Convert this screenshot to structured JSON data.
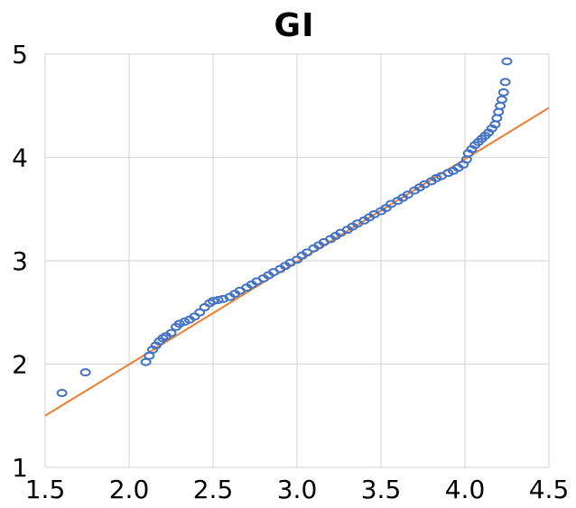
{
  "chart_data": {
    "type": "scatter",
    "title": "GI",
    "xlabel": "",
    "ylabel": "",
    "xlim": [
      1.5,
      4.5
    ],
    "ylim": [
      1,
      5
    ],
    "x_ticks": [
      "1.5",
      "2.0",
      "2.5",
      "3.0",
      "3.5",
      "4.0",
      "4.5"
    ],
    "y_ticks": [
      "1",
      "2",
      "3",
      "4",
      "5"
    ],
    "grid": true,
    "legend": "none",
    "colors": {
      "points": "#4472C4",
      "reference_line": "#ED7D31",
      "grid": "#D9D9D9"
    },
    "reference_line": {
      "x": [
        1.5,
        4.5
      ],
      "y": [
        1.5,
        4.48
      ]
    },
    "series": [
      {
        "points": [
          [
            1.6,
            1.72
          ],
          [
            1.74,
            1.92
          ],
          [
            2.1,
            2.02
          ],
          [
            2.12,
            2.08
          ],
          [
            2.14,
            2.14
          ],
          [
            2.16,
            2.18
          ],
          [
            2.18,
            2.22
          ],
          [
            2.2,
            2.25
          ],
          [
            2.22,
            2.27
          ],
          [
            2.25,
            2.3
          ],
          [
            2.28,
            2.36
          ],
          [
            2.3,
            2.39
          ],
          [
            2.33,
            2.41
          ],
          [
            2.36,
            2.43
          ],
          [
            2.39,
            2.46
          ],
          [
            2.42,
            2.5
          ],
          [
            2.45,
            2.55
          ],
          [
            2.48,
            2.59
          ],
          [
            2.5,
            2.61
          ],
          [
            2.53,
            2.62
          ],
          [
            2.56,
            2.63
          ],
          [
            2.6,
            2.65
          ],
          [
            2.63,
            2.68
          ],
          [
            2.66,
            2.71
          ],
          [
            2.7,
            2.74
          ],
          [
            2.73,
            2.77
          ],
          [
            2.76,
            2.8
          ],
          [
            2.8,
            2.83
          ],
          [
            2.83,
            2.86
          ],
          [
            2.86,
            2.89
          ],
          [
            2.9,
            2.92
          ],
          [
            2.93,
            2.95
          ],
          [
            2.96,
            2.98
          ],
          [
            3.0,
            3.01
          ],
          [
            3.03,
            3.05
          ],
          [
            3.06,
            3.08
          ],
          [
            3.1,
            3.12
          ],
          [
            3.13,
            3.15
          ],
          [
            3.16,
            3.18
          ],
          [
            3.2,
            3.21
          ],
          [
            3.23,
            3.24
          ],
          [
            3.26,
            3.27
          ],
          [
            3.3,
            3.3
          ],
          [
            3.33,
            3.33
          ],
          [
            3.36,
            3.36
          ],
          [
            3.4,
            3.39
          ],
          [
            3.43,
            3.42
          ],
          [
            3.46,
            3.45
          ],
          [
            3.5,
            3.48
          ],
          [
            3.53,
            3.51
          ],
          [
            3.56,
            3.55
          ],
          [
            3.6,
            3.58
          ],
          [
            3.63,
            3.61
          ],
          [
            3.66,
            3.64
          ],
          [
            3.7,
            3.68
          ],
          [
            3.73,
            3.71
          ],
          [
            3.76,
            3.74
          ],
          [
            3.8,
            3.77
          ],
          [
            3.83,
            3.8
          ],
          [
            3.86,
            3.82
          ],
          [
            3.9,
            3.85
          ],
          [
            3.93,
            3.87
          ],
          [
            3.96,
            3.9
          ],
          [
            3.99,
            3.93
          ],
          [
            4.01,
            3.98
          ],
          [
            4.02,
            4.04
          ],
          [
            4.04,
            4.08
          ],
          [
            4.06,
            4.12
          ],
          [
            4.08,
            4.15
          ],
          [
            4.1,
            4.18
          ],
          [
            4.12,
            4.21
          ],
          [
            4.14,
            4.24
          ],
          [
            4.16,
            4.28
          ],
          [
            4.18,
            4.32
          ],
          [
            4.19,
            4.38
          ],
          [
            4.2,
            4.44
          ],
          [
            4.21,
            4.5
          ],
          [
            4.22,
            4.56
          ],
          [
            4.23,
            4.63
          ],
          [
            4.24,
            4.73
          ],
          [
            4.25,
            4.93
          ]
        ]
      }
    ]
  }
}
